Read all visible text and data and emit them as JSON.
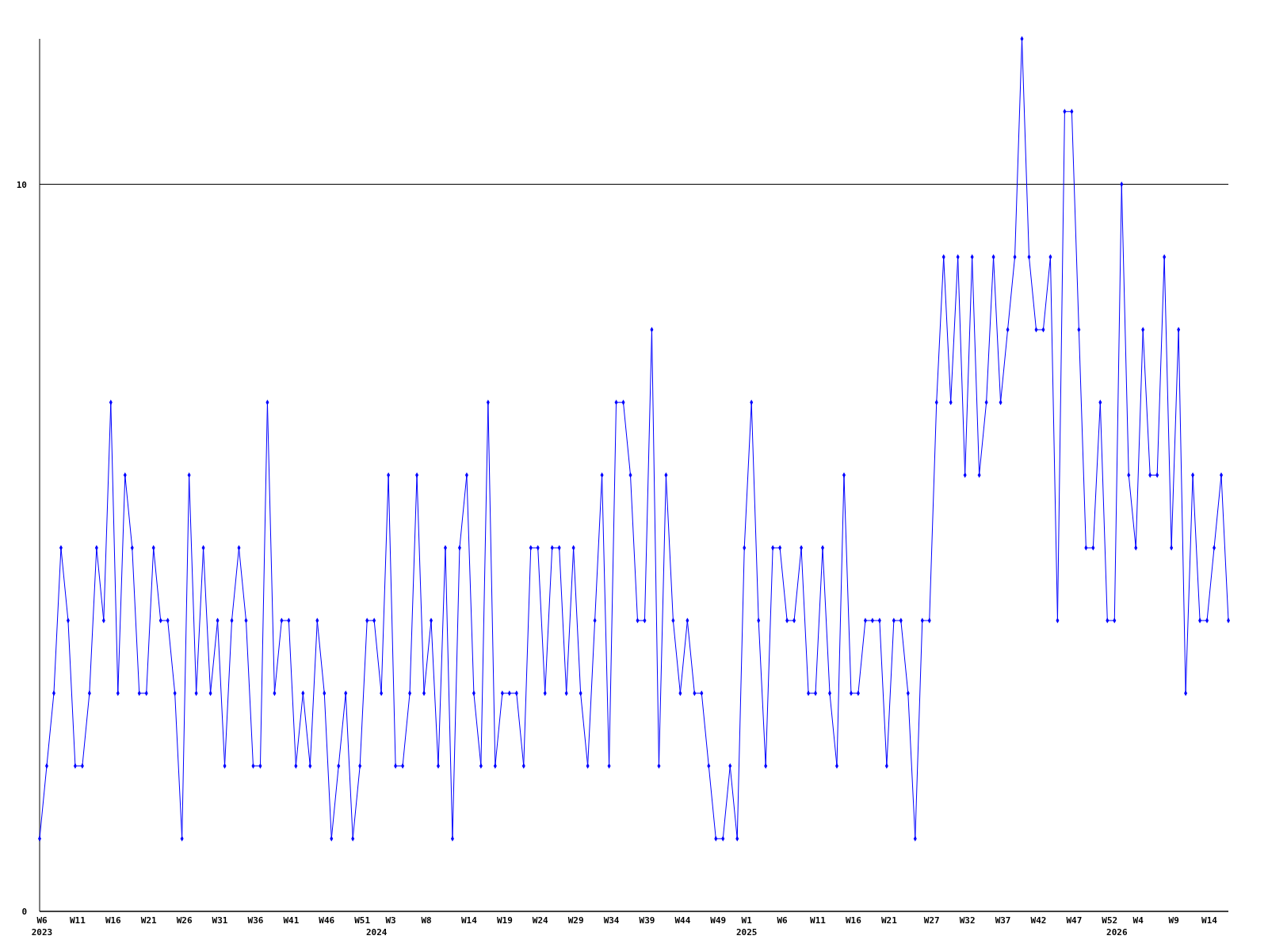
{
  "chart_data": {
    "type": "line",
    "categories": [
      "W6\n2023",
      null,
      null,
      null,
      null,
      "W11",
      null,
      null,
      null,
      null,
      "W16",
      null,
      null,
      null,
      null,
      "W21",
      null,
      null,
      null,
      null,
      "W26",
      null,
      null,
      null,
      null,
      "W31",
      null,
      null,
      null,
      null,
      "W36",
      null,
      null,
      null,
      null,
      "W41",
      null,
      null,
      null,
      null,
      "W46",
      null,
      null,
      null,
      null,
      "W51",
      null,
      "\n2024",
      null,
      "W3",
      null,
      null,
      null,
      null,
      "W8",
      null,
      null,
      null,
      null,
      null,
      "W14",
      null,
      null,
      null,
      null,
      "W19",
      null,
      null,
      null,
      null,
      "W24",
      null,
      null,
      null,
      null,
      "W29",
      null,
      null,
      null,
      null,
      "W34",
      null,
      null,
      null,
      null,
      "W39",
      null,
      null,
      null,
      null,
      "W44",
      null,
      null,
      null,
      null,
      "W49",
      null,
      null,
      null,
      "W1\n2025",
      null,
      null,
      null,
      null,
      "W6",
      null,
      null,
      null,
      null,
      "W11",
      null,
      null,
      null,
      null,
      "W16",
      null,
      null,
      null,
      null,
      "W21",
      null,
      null,
      null,
      null,
      null,
      "W27",
      null,
      null,
      null,
      null,
      "W32",
      null,
      null,
      null,
      null,
      "W37",
      null,
      null,
      null,
      null,
      "W42",
      null,
      null,
      null,
      null,
      "W47",
      null,
      null,
      null,
      null,
      "W52",
      "\n2026",
      null,
      null,
      "W4",
      null,
      null,
      null,
      null,
      "W9",
      null,
      null,
      null,
      null,
      "W14",
      null,
      null,
      null
    ],
    "series": [
      {
        "color": "#0000ff",
        "values": [
          1,
          2,
          3,
          5,
          4,
          2,
          2,
          3,
          5,
          4,
          7,
          3,
          6,
          5,
          3,
          3,
          5,
          4,
          4,
          3,
          1,
          6,
          3,
          5,
          3,
          4,
          2,
          4,
          5,
          4,
          2,
          2,
          7,
          3,
          4,
          4,
          2,
          3,
          2,
          4,
          3,
          1,
          2,
          3,
          1,
          2,
          4,
          4,
          3,
          6,
          2,
          2,
          3,
          6,
          3,
          4,
          2,
          5,
          1,
          5,
          6,
          3,
          2,
          7,
          2,
          3,
          3,
          3,
          2,
          5,
          5,
          3,
          5,
          5,
          3,
          5,
          3,
          2,
          4,
          6,
          2,
          7,
          7,
          6,
          4,
          4,
          8,
          2,
          6,
          4,
          3,
          4,
          3,
          3,
          2,
          1,
          1,
          2,
          1,
          5,
          7,
          4,
          2,
          5,
          5,
          4,
          4,
          5,
          3,
          3,
          5,
          3,
          2,
          6,
          3,
          3,
          4,
          4,
          4,
          2,
          4,
          4,
          3,
          1,
          4,
          4,
          7,
          9,
          7,
          9,
          6,
          9,
          6,
          7,
          9,
          7,
          8,
          9,
          12,
          9,
          8,
          8,
          9,
          4,
          11,
          11,
          8,
          5,
          5,
          7,
          4,
          4,
          10,
          6,
          5,
          8,
          6,
          6,
          9,
          5,
          8,
          3,
          6,
          4,
          4,
          5,
          6,
          4
        ]
      }
    ],
    "ylim": [
      0,
      12
    ],
    "yticks": [
      0,
      10
    ],
    "grid": "y",
    "marker": "diamond",
    "line_style": "solid"
  }
}
